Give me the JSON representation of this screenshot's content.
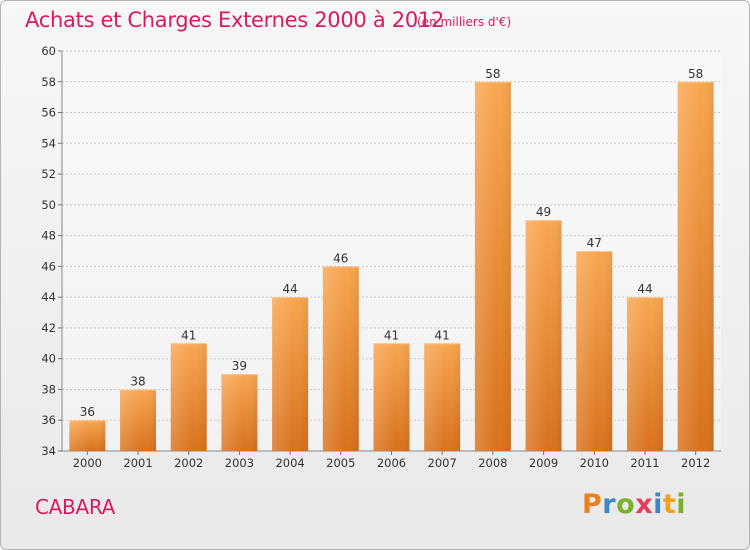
{
  "chart_data": {
    "type": "bar",
    "title": "Achats et Charges Externes 2000 à 2012",
    "subtitle": "(en milliers d'€)",
    "categories": [
      "2000",
      "2001",
      "2002",
      "2003",
      "2004",
      "2005",
      "2006",
      "2007",
      "2008",
      "2009",
      "2010",
      "2011",
      "2012"
    ],
    "values": [
      36,
      38,
      41,
      39,
      44,
      46,
      41,
      41,
      58,
      49,
      47,
      44,
      58
    ],
    "ylim": [
      34,
      60
    ],
    "yticks": [
      34,
      36,
      38,
      40,
      42,
      44,
      46,
      48,
      50,
      52,
      54,
      56,
      58,
      60
    ],
    "xlabel": "",
    "ylabel": "",
    "grid": true,
    "bar_color": "#f0983a"
  },
  "footer": {
    "place": "CABARA",
    "logo": [
      "P",
      "r",
      "o",
      "x",
      "i",
      "t",
      "i"
    ]
  }
}
